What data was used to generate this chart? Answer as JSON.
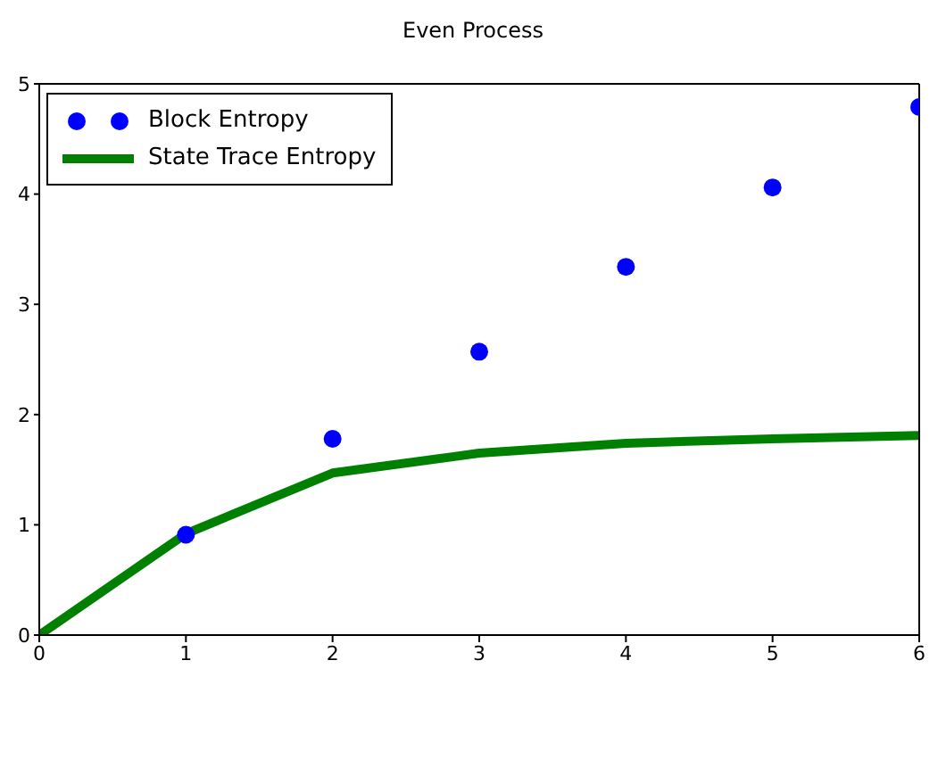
{
  "chart_data": {
    "type": "scatter",
    "title": "Even Process",
    "xlim": [
      0,
      6
    ],
    "ylim": [
      0,
      5
    ],
    "xticks": [
      0,
      1,
      2,
      3,
      4,
      5,
      6
    ],
    "yticks": [
      0,
      1,
      2,
      3,
      4,
      5
    ],
    "legend": "top left",
    "series": [
      {
        "name": "Block Entropy",
        "marker": "circle",
        "color": "#0000ff",
        "x": [
          1,
          2,
          3,
          4,
          5,
          6
        ],
        "values": [
          0.91,
          1.78,
          2.57,
          3.34,
          4.06,
          4.79
        ]
      },
      {
        "name": "State Trace Entropy",
        "type": "line",
        "marker": "none",
        "line_style": "solid",
        "color": "#008000",
        "x": [
          0,
          1,
          2,
          3,
          4,
          5,
          6
        ],
        "values": [
          0,
          0.92,
          1.47,
          1.65,
          1.74,
          1.78,
          1.81
        ]
      }
    ]
  }
}
